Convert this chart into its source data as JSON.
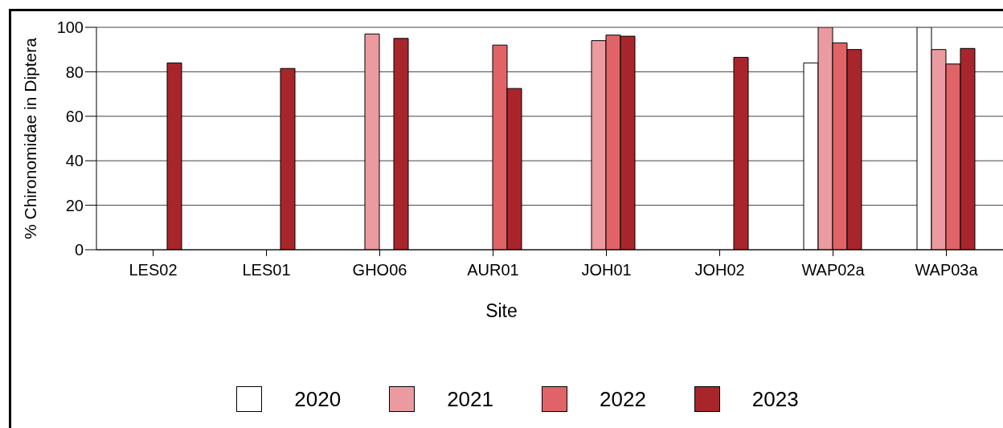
{
  "chart_data": {
    "type": "bar",
    "xlabel": "Site",
    "ylabel": "% Chironomidae in Diptera",
    "categories": [
      "LES02",
      "LES01",
      "GHO06",
      "AUR01",
      "JOH01",
      "JOH02",
      "WAP02a",
      "WAP03a"
    ],
    "series": [
      {
        "name": "2020",
        "color": "#ffffff",
        "values": [
          null,
          null,
          null,
          null,
          null,
          null,
          84,
          100
        ]
      },
      {
        "name": "2021",
        "color": "#eb9b9f",
        "values": [
          null,
          null,
          97,
          null,
          94,
          null,
          100,
          90
        ]
      },
      {
        "name": "2022",
        "color": "#e06467",
        "values": [
          null,
          null,
          null,
          92,
          96.5,
          null,
          93,
          83.5
        ]
      },
      {
        "name": "2023",
        "color": "#a8262b",
        "values": [
          84,
          81.5,
          95,
          72.5,
          96,
          86.5,
          90,
          90.5
        ]
      }
    ],
    "ylim": [
      0,
      100
    ],
    "yticks": [
      0,
      20,
      40,
      60,
      80,
      100
    ],
    "grid": "y",
    "legend": "bottom"
  }
}
